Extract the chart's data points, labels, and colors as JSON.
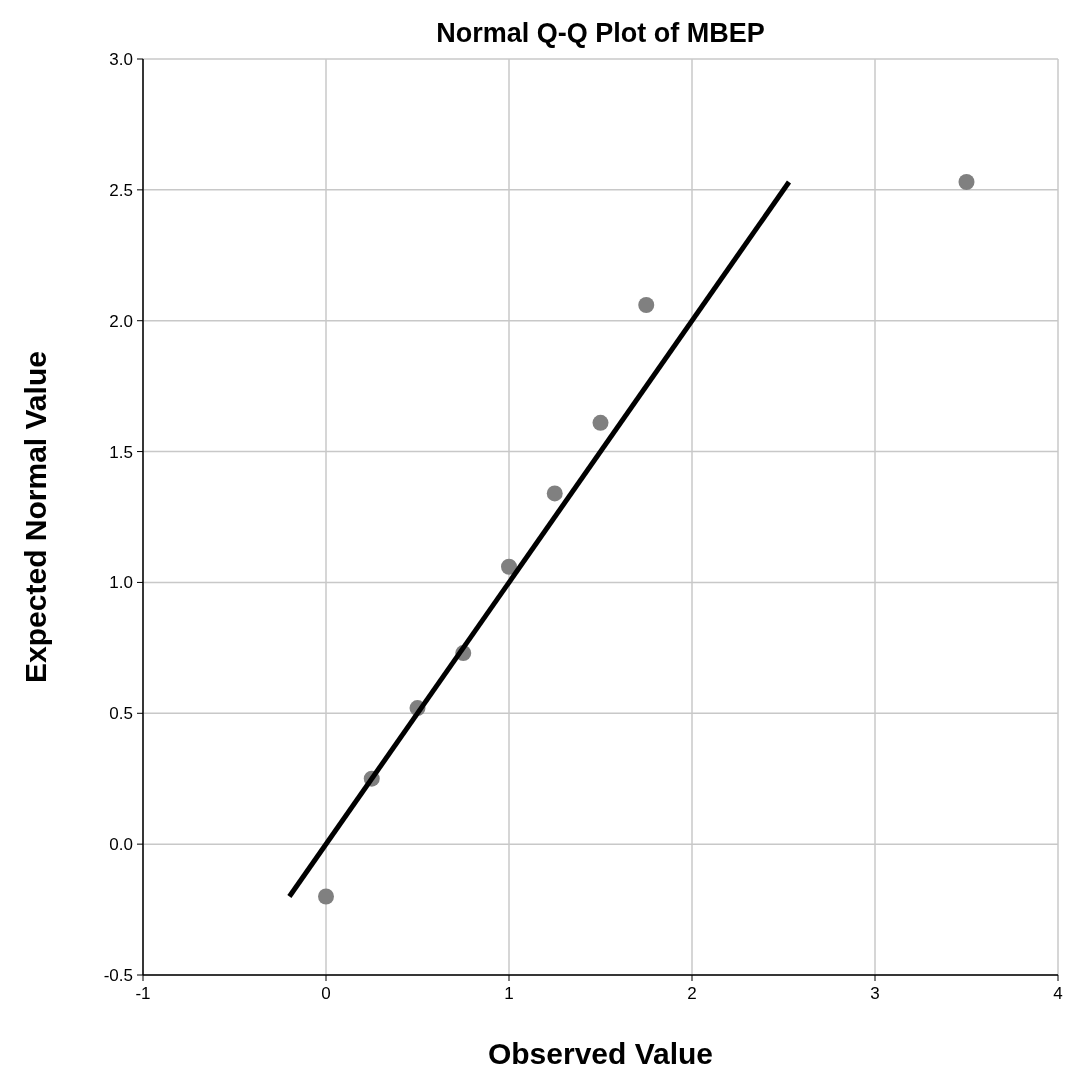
{
  "chart_data": {
    "type": "scatter",
    "title": "Normal Q-Q Plot of MBEP",
    "xlabel": "Observed Value",
    "ylabel": "Expected Normal Value",
    "xlim": [
      -1,
      4
    ],
    "ylim": [
      -0.5,
      3.0
    ],
    "xticks": [
      -1,
      0,
      1,
      2,
      3,
      4
    ],
    "yticks": [
      {
        "value": -0.5,
        "label": "-0.5"
      },
      {
        "value": 0,
        "label": "0.0"
      },
      {
        "value": 0.5,
        "label": "0.5"
      },
      {
        "value": 1,
        "label": "1.0"
      },
      {
        "value": 1.5,
        "label": "1.5"
      },
      {
        "value": 2,
        "label": "2.0"
      },
      {
        "value": 2.5,
        "label": "2.5"
      },
      {
        "value": 3,
        "label": "3.0"
      }
    ],
    "grid": true,
    "series": [
      {
        "marker": "circle",
        "color": "#808080",
        "x": [
          0,
          0.25,
          0.5,
          0.75,
          1,
          1.25,
          1.5,
          1.75,
          3.5
        ],
        "values": [
          -0.2,
          0.25,
          0.52,
          0.73,
          1.06,
          1.34,
          1.61,
          2.06,
          2.53
        ]
      },
      {
        "type": "line",
        "color": "#000000",
        "x": [
          -0.2,
          2.53
        ],
        "values": [
          -0.2,
          2.53
        ]
      }
    ]
  }
}
